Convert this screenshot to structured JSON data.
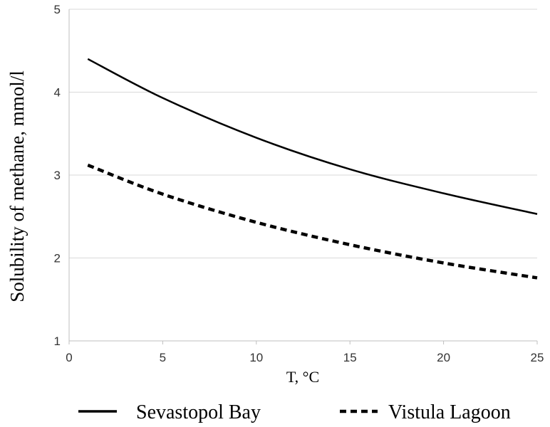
{
  "chart_data": {
    "type": "line",
    "title": "",
    "xlabel": "T, °C",
    "ylabel": "Solubility of methane, mmol/l",
    "xlim": [
      0,
      25
    ],
    "ylim": [
      1,
      5
    ],
    "xticks": [
      0,
      5,
      10,
      15,
      20,
      25
    ],
    "yticks": [
      1,
      2,
      3,
      4,
      5
    ],
    "grid": "horizontal",
    "legend": "bottom",
    "series": [
      {
        "name": "Sevastopol Bay",
        "style": "solid",
        "color": "#000000",
        "x": [
          1,
          5,
          10,
          15,
          20,
          25
        ],
        "y": [
          4.4,
          3.93,
          3.45,
          3.07,
          2.78,
          2.53
        ]
      },
      {
        "name": "Vistula Lagoon",
        "style": "dashed",
        "color": "#000000",
        "x": [
          1,
          5,
          10,
          15,
          20,
          25
        ],
        "y": [
          3.12,
          2.77,
          2.43,
          2.16,
          1.94,
          1.76
        ]
      }
    ]
  }
}
